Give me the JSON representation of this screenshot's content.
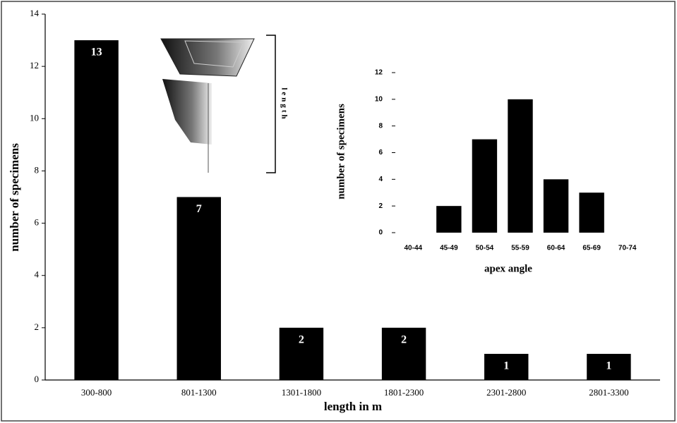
{
  "chart_data": [
    {
      "type": "bar",
      "x_label": "length in m",
      "y_label": "number of specimens",
      "annotation": "length",
      "categories": [
        "300-800",
        "801-1300",
        "1301-1800",
        "1801-2300",
        "2301-2800",
        "2801-3300"
      ],
      "values": [
        13,
        7,
        2,
        2,
        1,
        1
      ],
      "color": "#000000",
      "ylim": [
        0,
        14
      ],
      "yticks": [
        0,
        2,
        4,
        6,
        8,
        10,
        12,
        14
      ]
    },
    {
      "type": "bar",
      "x_label": "apex angle",
      "y_label": "number of specimens",
      "categories": [
        "40-44",
        "45-49",
        "50-54",
        "55-59",
        "60-64",
        "65-69",
        "70-74"
      ],
      "values": [
        0,
        2,
        7,
        10,
        4,
        3,
        0
      ],
      "color": "#000000",
      "ylim": [
        0,
        12
      ],
      "yticks": [
        0,
        2,
        4,
        6,
        8,
        10,
        12
      ]
    }
  ]
}
